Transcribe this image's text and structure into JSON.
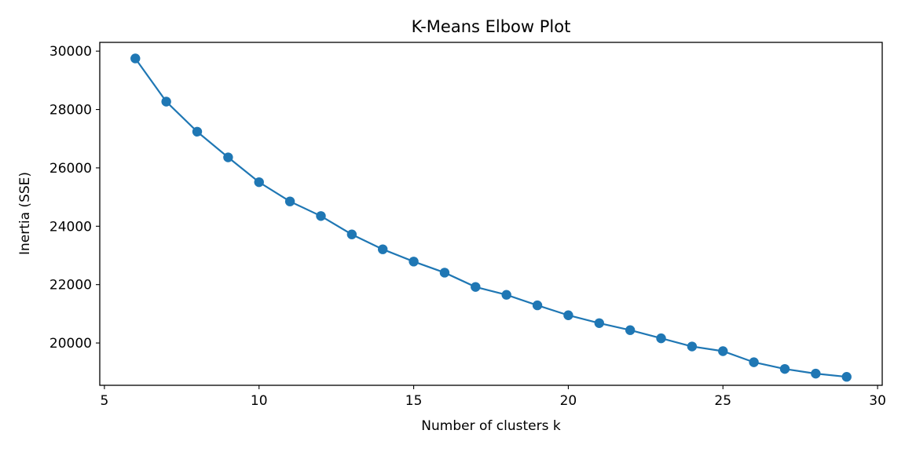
{
  "chart_data": {
    "type": "line",
    "title": "K-Means Elbow Plot",
    "xlabel": "Number of clusters k",
    "ylabel": "Inertia (SSE)",
    "xlim": [
      4.85,
      30.15
    ],
    "ylim": [
      18550,
      30300
    ],
    "xticks": [
      5,
      10,
      15,
      20,
      25,
      30
    ],
    "yticks": [
      20000,
      22000,
      24000,
      26000,
      28000,
      30000
    ],
    "grid": false,
    "marker": "circle",
    "color": "#1f77b4",
    "series": [
      {
        "x": [
          6,
          7,
          8,
          9,
          10,
          11,
          12,
          13,
          14,
          15,
          16,
          17,
          18,
          19,
          20,
          21,
          22,
          23,
          24,
          25,
          26,
          27,
          28,
          29
        ],
        "values": [
          29750,
          28270,
          27240,
          26360,
          25510,
          24850,
          24350,
          23720,
          23210,
          22790,
          22410,
          21920,
          21650,
          21290,
          20950,
          20680,
          20440,
          20160,
          19880,
          19720,
          19340,
          19110,
          18950,
          18840
        ]
      }
    ]
  }
}
